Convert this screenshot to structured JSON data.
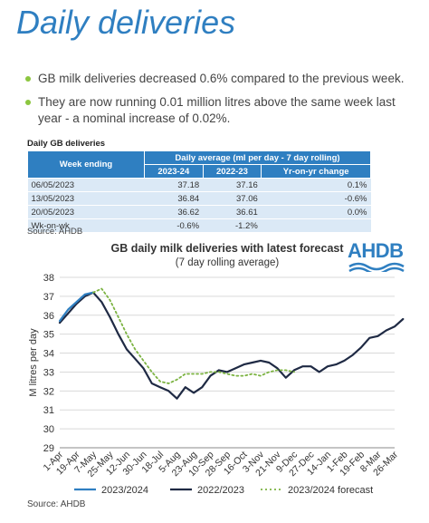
{
  "title": "Daily deliveries",
  "bullets": [
    "GB milk deliveries decreased 0.6% compared to the previous week.",
    "They are now running 0.01 million litres above the same week last year - a nominal increase of 0.02%."
  ],
  "table": {
    "caption": "Daily GB deliveries",
    "col_week": "Week ending",
    "group_header": "Daily average (ml per day - 7 day rolling)",
    "col_a": "2023-24",
    "col_b": "2022-23",
    "col_c": "Yr-on-yr change",
    "rows": [
      [
        "06/05/2023",
        "37.18",
        "37.16",
        "0.1%"
      ],
      [
        "13/05/2023",
        "36.84",
        "37.06",
        "-0.6%"
      ],
      [
        "20/05/2023",
        "36.62",
        "36.61",
        "0.0%"
      ],
      [
        "Wk-on-wk",
        "-0.6%",
        "-1.2%",
        ""
      ]
    ],
    "source": "Source: AHDB"
  },
  "logo": "AHDB",
  "colors": {
    "title": "#2f7fc1",
    "bullet": "#8cc63f",
    "line2324": "#2f7fc1",
    "line2223": "#1f2a44",
    "forecast": "#7cb342"
  },
  "chart_data": {
    "type": "line",
    "title": "GB daily milk deliveries with latest forecast",
    "subtitle": "(7 day rolling average)",
    "ylabel": "M litres per day",
    "ylim": [
      29,
      38
    ],
    "yticks": [
      29,
      30,
      31,
      32,
      33,
      34,
      35,
      36,
      37,
      38
    ],
    "categories": [
      "1-Apr",
      "19-Apr",
      "7-May",
      "25-May",
      "12-Jun",
      "30-Jun",
      "18-Jul",
      "5-Aug",
      "23-Aug",
      "10-Sep",
      "28-Sep",
      "16-Oct",
      "3-Nov",
      "21-Nov",
      "9-Dec",
      "27-Dec",
      "14-Jan",
      "1-Feb",
      "19-Feb",
      "8-Mar",
      "26-Mar"
    ],
    "legend_position": "bottom",
    "series": [
      {
        "name": "2023/2024",
        "style": "solid",
        "x": [
          0,
          0.5,
          1,
          1.5,
          2
        ],
        "values": [
          35.7,
          36.3,
          36.7,
          37.1,
          37.2
        ]
      },
      {
        "name": "2022/2023",
        "style": "solid",
        "x": [
          0,
          0.5,
          1,
          1.5,
          2,
          2.5,
          3,
          3.5,
          4,
          4.5,
          5,
          5.5,
          6,
          6.5,
          7,
          7.5,
          8,
          8.5,
          9,
          9.5,
          10,
          10.5,
          11,
          11.5,
          12,
          12.5,
          13,
          13.5,
          14,
          14.5,
          15,
          15.5,
          16,
          16.5,
          17,
          17.5,
          18,
          18.5,
          19,
          19.5,
          20,
          20.5
        ],
        "values": [
          35.6,
          36.1,
          36.6,
          37.0,
          37.2,
          36.7,
          35.9,
          35.0,
          34.2,
          33.7,
          33.2,
          32.4,
          32.2,
          32.0,
          31.6,
          32.2,
          31.9,
          32.2,
          32.8,
          33.1,
          33.0,
          33.2,
          33.4,
          33.5,
          33.6,
          33.5,
          33.2,
          32.7,
          33.1,
          33.3,
          33.3,
          33.0,
          33.3,
          33.4,
          33.6,
          33.9,
          34.3,
          34.8,
          34.9,
          35.2,
          35.4,
          35.8
        ]
      },
      {
        "name": "2023/2024 forecast",
        "style": "dotted",
        "x": [
          2,
          2.5,
          3,
          3.5,
          4,
          4.5,
          5,
          5.5,
          6,
          6.5,
          7,
          7.5,
          8,
          8.5,
          9,
          9.5,
          10,
          10.5,
          11,
          11.5,
          12,
          12.5,
          13,
          13.5,
          14
        ],
        "values": [
          37.2,
          37.4,
          36.8,
          35.9,
          35.0,
          34.2,
          33.6,
          33.0,
          32.5,
          32.4,
          32.6,
          32.9,
          32.9,
          32.9,
          33.0,
          33.0,
          32.9,
          32.8,
          32.8,
          32.9,
          32.8,
          33.0,
          33.1,
          33.1,
          33.0
        ]
      }
    ],
    "source": "Source: AHDB"
  }
}
